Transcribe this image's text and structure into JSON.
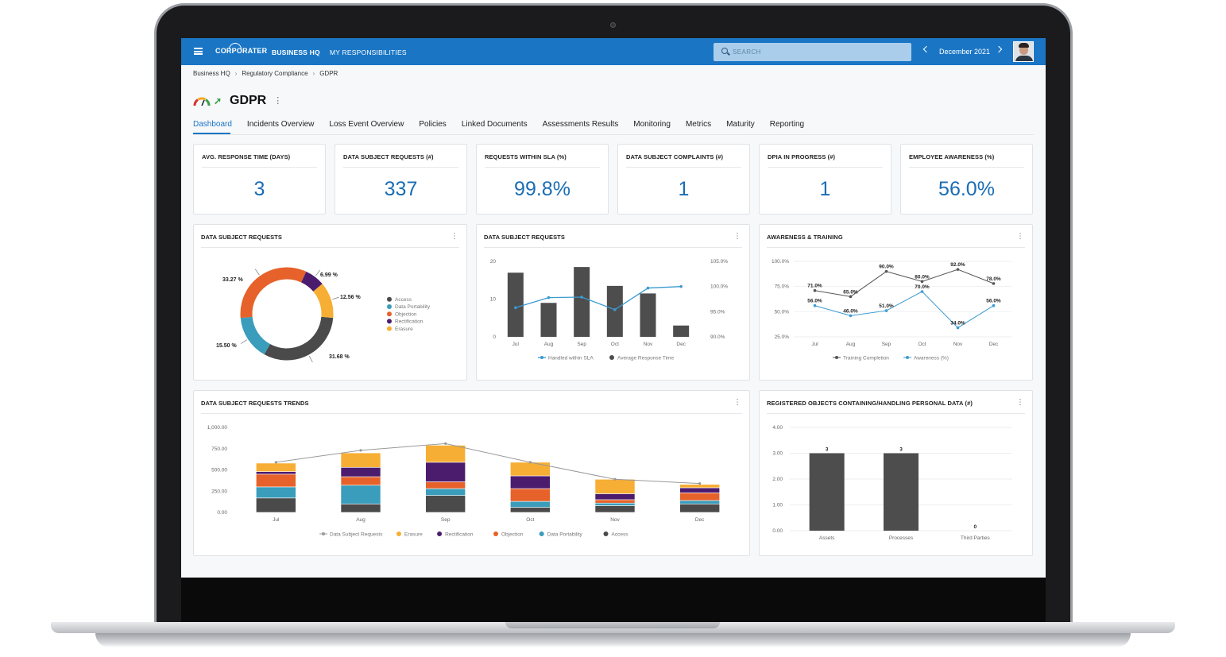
{
  "topbar": {
    "logo": "CORPORATER",
    "nav": [
      "BUSINESS HQ",
      "MY RESPONSIBILITIES"
    ],
    "search_placeholder": "SEARCH",
    "date": "December 2021"
  },
  "breadcrumb": [
    "Business HQ",
    "Regulatory Compliance",
    "GDPR"
  ],
  "page": {
    "title": "GDPR"
  },
  "tabs": [
    "Dashboard",
    "Incidents Overview",
    "Loss Event Overview",
    "Policies",
    "Linked Documents",
    "Assessments Results",
    "Monitoring",
    "Metrics",
    "Maturity",
    "Reporting"
  ],
  "kpis": [
    {
      "title": "AVG. RESPONSE TIME (DAYS)",
      "value": "3"
    },
    {
      "title": "DATA SUBJECT REQUESTS (#)",
      "value": "337"
    },
    {
      "title": "REQUESTS WITHIN SLA (%)",
      "value": "99.8%"
    },
    {
      "title": "DATA SUBJECT COMPLAINTS (#)",
      "value": "1"
    },
    {
      "title": "DPIA IN PROGRESS (#)",
      "value": "1"
    },
    {
      "title": "EMPLOYEE AWARENESS (%)",
      "value": "56.0%"
    }
  ],
  "colors": {
    "accent": "#1a76c5",
    "access": "#4a4a4a",
    "data_portability": "#3a9dbb",
    "objection": "#e6622a",
    "rectification": "#4b1c6e",
    "erasure": "#f7ae34",
    "bar_dark": "#4d4d4d",
    "line_blue": "#3a9bd1",
    "line_gray": "#999999"
  },
  "chart_data": [
    {
      "type": "pie",
      "title": "DATA SUBJECT REQUESTS",
      "labels": [
        "Access",
        "Data Portability",
        "Objection",
        "Rectification",
        "Erasure"
      ],
      "values": [
        31.68,
        15.5,
        33.27,
        6.99,
        12.56
      ],
      "value_labels": [
        "31.68 %",
        "15.50 %",
        "33.27 %",
        "6.99 %",
        "12.56 %"
      ],
      "legend": "right"
    },
    {
      "type": "bar",
      "title": "DATA SUBJECT REQUESTS",
      "categories": [
        "Jul",
        "Aug",
        "Sep",
        "Oct",
        "Nov",
        "Dec"
      ],
      "series": [
        {
          "name": "Average Response Time",
          "type": "bar",
          "axis": "left",
          "values": [
            17,
            9,
            18.5,
            13.5,
            11.5,
            3
          ]
        },
        {
          "name": "Handled within SLA",
          "type": "line",
          "axis": "right",
          "values": [
            95.8,
            97.8,
            97.9,
            95.4,
            99.7,
            100.0
          ]
        }
      ],
      "y_left": {
        "ticks": [
          "20",
          "10",
          "0"
        ],
        "range": [
          0,
          20
        ]
      },
      "y_right": {
        "ticks": [
          "105.0%",
          "100.0%",
          "95.0%",
          "90.0%"
        ],
        "range": [
          90,
          105
        ]
      },
      "legend": "bottom"
    },
    {
      "type": "line",
      "title": "AWARENESS & TRAINING",
      "categories": [
        "Jul",
        "Aug",
        "Sep",
        "Oct",
        "Nov",
        "Dec"
      ],
      "series": [
        {
          "name": "Training Completion",
          "values": [
            71.0,
            65.0,
            90.0,
            80.0,
            92.0,
            78.0
          ],
          "labels": [
            "71.0%",
            "65.0%",
            "90.0%",
            "80.0%",
            "92.0%",
            "78.0%"
          ]
        },
        {
          "name": "Awareness (%)",
          "values": [
            56.0,
            46.0,
            51.0,
            70.0,
            34.0,
            56.0
          ],
          "labels": [
            "56.0%",
            "46.0%",
            "51.0%",
            "70.0%",
            "34.0%",
            "56.0%"
          ]
        }
      ],
      "y_ticks": [
        "100.0%",
        "75.0%",
        "50.0%",
        "25.0%"
      ],
      "ylim": [
        25,
        100
      ],
      "legend": "bottom"
    },
    {
      "type": "bar",
      "stacked": true,
      "title": "DATA SUBJECT REQUESTS TRENDS",
      "categories": [
        "Jul",
        "Aug",
        "Sep",
        "Oct",
        "Nov",
        "Dec"
      ],
      "series": [
        {
          "name": "Access",
          "values": [
            170,
            100,
            200,
            60,
            80,
            100
          ]
        },
        {
          "name": "Data Portability",
          "values": [
            130,
            220,
            80,
            70,
            30,
            40
          ]
        },
        {
          "name": "Objection",
          "values": [
            150,
            100,
            80,
            150,
            40,
            90
          ]
        },
        {
          "name": "Rectification",
          "values": [
            30,
            110,
            230,
            150,
            70,
            60
          ]
        },
        {
          "name": "Erasure",
          "values": [
            100,
            170,
            200,
            160,
            170,
            40
          ]
        },
        {
          "name": "Data Subject Requests",
          "type": "line",
          "values": [
            590,
            730,
            810,
            590,
            390,
            340
          ]
        }
      ],
      "y_ticks": [
        "1,000.00",
        "750.00",
        "500.00",
        "250.00",
        "0.00"
      ],
      "ylim": [
        0,
        1000
      ],
      "legend": "bottom"
    },
    {
      "type": "bar",
      "title": "REGISTERED OBJECTS CONTAINING/HANDLING PERSONAL DATA (#)",
      "categories": [
        "Assets",
        "Processes",
        "Third Parties"
      ],
      "values": [
        3,
        3,
        0
      ],
      "value_labels": [
        "3",
        "3",
        "0"
      ],
      "y_ticks": [
        "4.00",
        "3.00",
        "2.00",
        "1.00",
        "0.00"
      ],
      "ylim": [
        0,
        4
      ]
    }
  ]
}
